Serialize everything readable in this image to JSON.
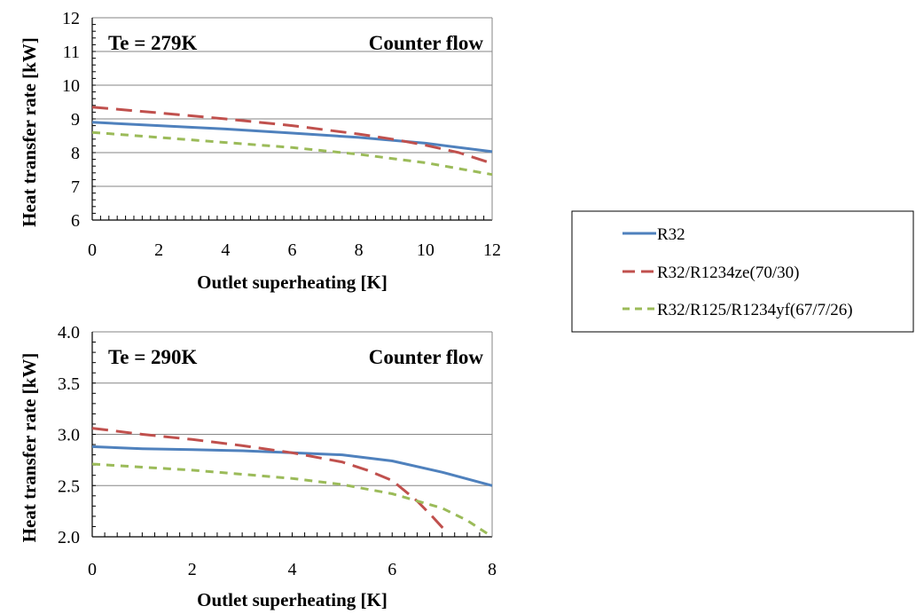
{
  "colors": {
    "R32": "#4f81bd",
    "R1234ze": "#c0504d",
    "R1234yf": "#9bbb59",
    "grid": "#868686",
    "frame": "#000000"
  },
  "legend": {
    "items": [
      {
        "label": "R32",
        "style": "solid",
        "color": "#4f81bd"
      },
      {
        "label": "R32/R1234ze(70/30)",
        "style": "dashed",
        "color": "#c0504d"
      },
      {
        "label": "R32/R125/R1234yf(67/7/26)",
        "style": "dashed",
        "color": "#9bbb59"
      }
    ]
  },
  "chart_data": [
    {
      "type": "line",
      "xlabel": "Outlet superheating [K]",
      "ylabel": "Heat transfer rate [kW]",
      "annotations": [
        "Te = 279K",
        "Counter flow"
      ],
      "xlim": [
        0,
        12
      ],
      "ylim": [
        6,
        12
      ],
      "xticks": [
        "0",
        "2",
        "4",
        "6",
        "8",
        "10",
        "12"
      ],
      "yticks": [
        "6",
        "7",
        "8",
        "9",
        "10",
        "11",
        "12"
      ],
      "grid": "horizontal",
      "series": [
        {
          "name": "R32",
          "x": [
            0,
            2,
            4,
            6,
            8,
            10,
            12
          ],
          "y": [
            8.9,
            8.8,
            8.7,
            8.58,
            8.45,
            8.28,
            8.03
          ]
        },
        {
          "name": "R32/R1234ze(70/30)",
          "x": [
            0,
            2,
            4,
            6,
            8,
            9,
            10,
            11,
            12
          ],
          "y": [
            9.35,
            9.18,
            9.0,
            8.8,
            8.55,
            8.4,
            8.22,
            8.0,
            7.68
          ]
        },
        {
          "name": "R32/R125/R1234yf(67/7/26)",
          "x": [
            0,
            2,
            4,
            6,
            8,
            10,
            12
          ],
          "y": [
            8.6,
            8.45,
            8.3,
            8.15,
            7.95,
            7.7,
            7.35
          ]
        }
      ]
    },
    {
      "type": "line",
      "xlabel": "Outlet superheating [K]",
      "ylabel": "Heat transfer rate [kW]",
      "annotations": [
        "Te = 290K",
        "Counter flow"
      ],
      "xlim": [
        0,
        8
      ],
      "ylim": [
        2.0,
        4.0
      ],
      "xticks": [
        "0",
        "2",
        "4",
        "6",
        "8"
      ],
      "yticks": [
        "2.0",
        "2.5",
        "3.0",
        "3.5",
        "4.0"
      ],
      "grid": "horizontal",
      "series": [
        {
          "name": "R32",
          "x": [
            0,
            1,
            2,
            3,
            4,
            5,
            6,
            7,
            8
          ],
          "y": [
            2.88,
            2.86,
            2.85,
            2.84,
            2.82,
            2.8,
            2.74,
            2.63,
            2.5
          ]
        },
        {
          "name": "R32/R1234ze(70/30)",
          "x": [
            0,
            1,
            2,
            3,
            4,
            5,
            5.5,
            6,
            6.5,
            6.8,
            7.1
          ],
          "y": [
            3.06,
            3.0,
            2.95,
            2.89,
            2.82,
            2.73,
            2.65,
            2.55,
            2.35,
            2.2,
            2.04
          ]
        },
        {
          "name": "R32/R125/R1234yf(67/7/26)",
          "x": [
            0,
            1,
            2,
            3,
            4,
            5,
            6,
            7,
            7.5,
            8
          ],
          "y": [
            2.71,
            2.68,
            2.65,
            2.61,
            2.57,
            2.51,
            2.42,
            2.28,
            2.16,
            2.0
          ]
        }
      ]
    }
  ]
}
